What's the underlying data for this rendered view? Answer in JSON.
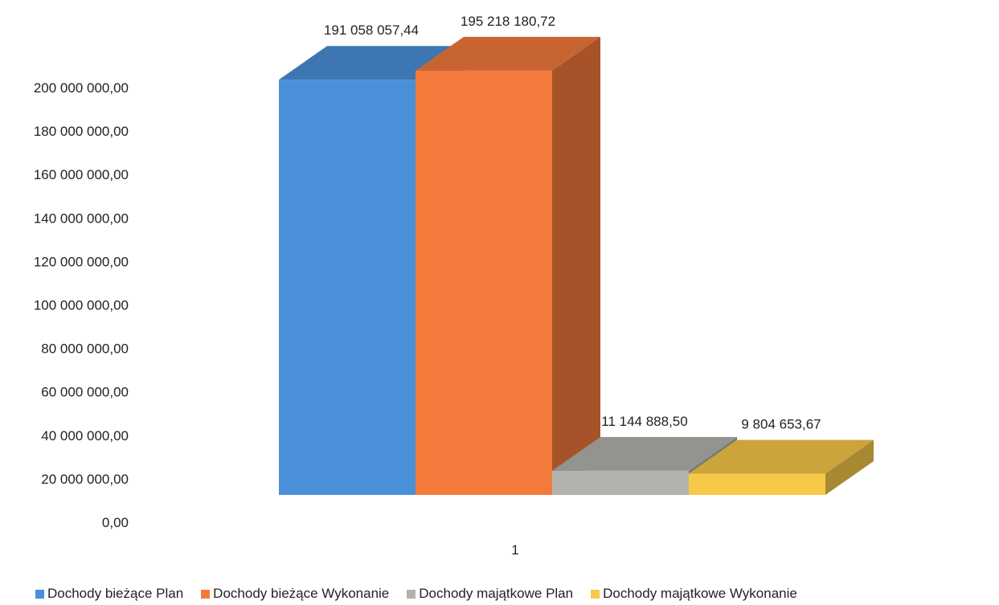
{
  "chart_data": {
    "type": "bar",
    "title": "",
    "xlabel": "",
    "ylabel": "",
    "categories": [
      "1"
    ],
    "ylim": [
      0,
      200000000
    ],
    "ytick_step": 20000000,
    "ytick_labels": [
      "0,00",
      "20 000 000,00",
      "40 000 000,00",
      "60 000 000,00",
      "80 000 000,00",
      "100 000 000,00",
      "120 000 000,00",
      "140 000 000,00",
      "160 000 000,00",
      "180 000 000,00",
      "200 000 000,00"
    ],
    "grid": false,
    "legend_position": "bottom",
    "series": [
      {
        "name": "Dochody bieżące Plan",
        "values": [
          191058057.44
        ],
        "label": "191 058 057,44",
        "color": "#4a90d9"
      },
      {
        "name": "Dochody bieżące Wykonanie",
        "values": [
          195218180.72
        ],
        "label": "195 218 180,72",
        "color": "#f47a3c"
      },
      {
        "name": "Dochody majątkowe Plan",
        "values": [
          11144888.5
        ],
        "label": "11 144 888,50",
        "color": "#b3b3ae"
      },
      {
        "name": "Dochody majątkowe Wykonanie",
        "values": [
          9804653.67
        ],
        "label": "9 804 653,67",
        "color": "#f7c948"
      }
    ]
  }
}
